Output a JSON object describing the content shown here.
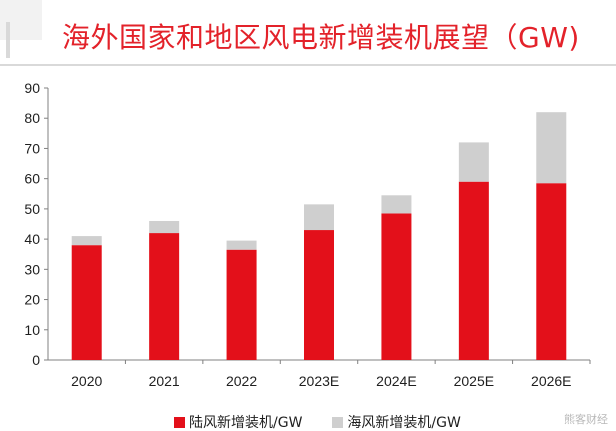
{
  "title": "海外国家和地区风电新增装机展望（GW)",
  "colors": {
    "onshore": "#e3101a",
    "offshore": "#cfcfcf",
    "title": "#e3222a"
  },
  "legend": {
    "onshore_label": "陆风新增装机/GW",
    "offshore_label": "海风新增装机/GW"
  },
  "watermark": "熊客财经",
  "chart_data": {
    "type": "bar",
    "stacked": true,
    "title": "海外国家和地区风电新增装机展望（GW)",
    "xlabel": "",
    "ylabel": "",
    "categories": [
      "2020",
      "2021",
      "2022",
      "2023E",
      "2024E",
      "2025E",
      "2026E"
    ],
    "series": [
      {
        "name": "陆风新增装机/GW",
        "color": "#e3101a",
        "values": [
          38,
          42,
          36.5,
          43,
          48.5,
          59,
          58.5
        ]
      },
      {
        "name": "海风新增装机/GW",
        "color": "#cfcfcf",
        "values": [
          3,
          4,
          3,
          8.5,
          6,
          13,
          23.5
        ]
      }
    ],
    "ylim": [
      0,
      90
    ],
    "yticks": [
      0,
      10,
      20,
      30,
      40,
      50,
      60,
      70,
      80,
      90
    ],
    "grid": false,
    "legend_position": "bottom"
  }
}
